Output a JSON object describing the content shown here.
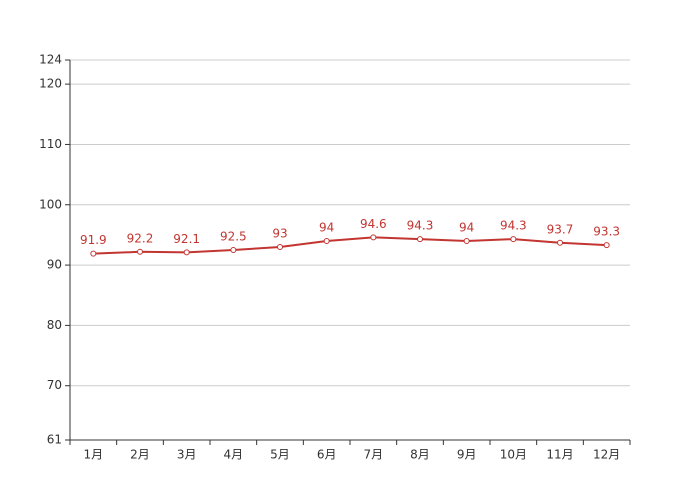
{
  "chart_data": {
    "type": "line",
    "categories": [
      "1月",
      "2月",
      "3月",
      "4月",
      "5月",
      "6月",
      "7月",
      "8月",
      "9月",
      "10月",
      "11月",
      "12月"
    ],
    "series": [
      {
        "color": "#c23531",
        "values": [
          91.9,
          92.2,
          92.1,
          92.5,
          93,
          94,
          94.6,
          94.3,
          94,
          94.3,
          93.7,
          93.3
        ]
      }
    ],
    "ylim": [
      61,
      124
    ],
    "yticks": [
      61,
      70,
      80,
      90,
      100,
      110,
      120,
      124
    ],
    "grid": true
  }
}
